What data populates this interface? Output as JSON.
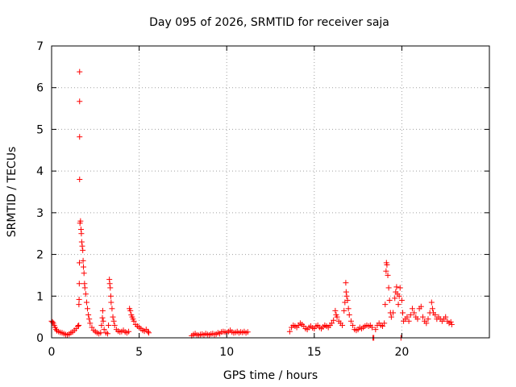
{
  "chart_data": {
    "type": "scatter",
    "title": "Day 095 of 2026, SRMTID for receiver saja",
    "xlabel": "GPS time / hours",
    "ylabel": "SRMTID / TECUs",
    "xlim": [
      0,
      25
    ],
    "ylim": [
      0,
      7
    ],
    "x_ticks": [
      0,
      5,
      10,
      15,
      20
    ],
    "y_ticks": [
      0,
      1,
      2,
      3,
      4,
      5,
      6,
      7
    ],
    "grid": true,
    "marker": "+",
    "series": [
      {
        "name": "SRMTID",
        "color": "#ff0000",
        "points": [
          [
            0.0,
            0.4
          ],
          [
            0.05,
            0.38
          ],
          [
            0.1,
            0.35
          ],
          [
            0.15,
            0.3
          ],
          [
            0.2,
            0.25
          ],
          [
            0.25,
            0.2
          ],
          [
            0.3,
            0.17
          ],
          [
            0.4,
            0.15
          ],
          [
            0.5,
            0.13
          ],
          [
            0.6,
            0.12
          ],
          [
            0.7,
            0.1
          ],
          [
            0.8,
            0.08
          ],
          [
            0.9,
            0.07
          ],
          [
            1.0,
            0.09
          ],
          [
            1.1,
            0.12
          ],
          [
            1.2,
            0.14
          ],
          [
            1.3,
            0.18
          ],
          [
            1.4,
            0.22
          ],
          [
            1.5,
            0.28
          ],
          [
            1.55,
            0.3
          ],
          [
            1.56,
            0.8
          ],
          [
            1.57,
            0.92
          ],
          [
            1.58,
            1.3
          ],
          [
            1.59,
            1.8
          ],
          [
            1.6,
            3.8
          ],
          [
            1.6,
            4.82
          ],
          [
            1.6,
            5.67
          ],
          [
            1.6,
            6.38
          ],
          [
            1.62,
            2.75
          ],
          [
            1.65,
            2.8
          ],
          [
            1.68,
            2.6
          ],
          [
            1.7,
            2.5
          ],
          [
            1.72,
            2.3
          ],
          [
            1.75,
            2.2
          ],
          [
            1.78,
            2.1
          ],
          [
            1.8,
            1.85
          ],
          [
            1.82,
            1.7
          ],
          [
            1.85,
            1.55
          ],
          [
            1.88,
            1.3
          ],
          [
            1.9,
            1.2
          ],
          [
            1.95,
            1.05
          ],
          [
            2.0,
            0.85
          ],
          [
            2.05,
            0.7
          ],
          [
            2.1,
            0.55
          ],
          [
            2.15,
            0.45
          ],
          [
            2.2,
            0.35
          ],
          [
            2.3,
            0.25
          ],
          [
            2.4,
            0.18
          ],
          [
            2.5,
            0.15
          ],
          [
            2.6,
            0.12
          ],
          [
            2.7,
            0.1
          ],
          [
            2.8,
            0.12
          ],
          [
            2.85,
            0.3
          ],
          [
            2.9,
            0.48
          ],
          [
            2.92,
            0.65
          ],
          [
            2.95,
            0.4
          ],
          [
            3.0,
            0.2
          ],
          [
            3.1,
            0.12
          ],
          [
            3.2,
            0.1
          ],
          [
            3.25,
            0.3
          ],
          [
            3.3,
            1.4
          ],
          [
            3.32,
            1.3
          ],
          [
            3.35,
            1.2
          ],
          [
            3.38,
            1.0
          ],
          [
            3.4,
            0.85
          ],
          [
            3.45,
            0.7
          ],
          [
            3.5,
            0.5
          ],
          [
            3.55,
            0.4
          ],
          [
            3.6,
            0.3
          ],
          [
            3.7,
            0.2
          ],
          [
            3.8,
            0.16
          ],
          [
            3.9,
            0.14
          ],
          [
            4.0,
            0.15
          ],
          [
            4.1,
            0.18
          ],
          [
            4.2,
            0.14
          ],
          [
            4.3,
            0.12
          ],
          [
            4.4,
            0.15
          ],
          [
            4.45,
            0.7
          ],
          [
            4.5,
            0.65
          ],
          [
            4.55,
            0.55
          ],
          [
            4.6,
            0.5
          ],
          [
            4.65,
            0.45
          ],
          [
            4.7,
            0.4
          ],
          [
            4.8,
            0.32
          ],
          [
            4.9,
            0.28
          ],
          [
            5.0,
            0.25
          ],
          [
            5.1,
            0.22
          ],
          [
            5.2,
            0.18
          ],
          [
            5.3,
            0.16
          ],
          [
            5.4,
            0.2
          ],
          [
            5.5,
            0.15
          ],
          [
            5.55,
            0.12
          ],
          [
            8.0,
            0.05
          ],
          [
            8.1,
            0.08
          ],
          [
            8.2,
            0.1
          ],
          [
            8.3,
            0.07
          ],
          [
            8.4,
            0.06
          ],
          [
            8.5,
            0.08
          ],
          [
            8.6,
            0.09
          ],
          [
            8.7,
            0.07
          ],
          [
            8.8,
            0.1
          ],
          [
            8.9,
            0.08
          ],
          [
            9.0,
            0.07
          ],
          [
            9.1,
            0.09
          ],
          [
            9.2,
            0.1
          ],
          [
            9.3,
            0.08
          ],
          [
            9.4,
            0.09
          ],
          [
            9.5,
            0.12
          ],
          [
            9.6,
            0.1
          ],
          [
            9.7,
            0.14
          ],
          [
            9.8,
            0.15
          ],
          [
            9.9,
            0.14
          ],
          [
            10.0,
            0.12
          ],
          [
            10.1,
            0.15
          ],
          [
            10.2,
            0.18
          ],
          [
            10.3,
            0.14
          ],
          [
            10.4,
            0.12
          ],
          [
            10.5,
            0.13
          ],
          [
            10.6,
            0.15
          ],
          [
            10.7,
            0.12
          ],
          [
            10.8,
            0.14
          ],
          [
            10.9,
            0.13
          ],
          [
            11.0,
            0.15
          ],
          [
            11.1,
            0.12
          ],
          [
            11.2,
            0.14
          ],
          [
            13.6,
            0.15
          ],
          [
            13.7,
            0.25
          ],
          [
            13.8,
            0.3
          ],
          [
            13.9,
            0.28
          ],
          [
            14.0,
            0.25
          ],
          [
            14.1,
            0.3
          ],
          [
            14.2,
            0.35
          ],
          [
            14.3,
            0.32
          ],
          [
            14.4,
            0.28
          ],
          [
            14.5,
            0.22
          ],
          [
            14.6,
            0.2
          ],
          [
            14.7,
            0.25
          ],
          [
            14.8,
            0.28
          ],
          [
            14.9,
            0.24
          ],
          [
            15.0,
            0.22
          ],
          [
            15.1,
            0.28
          ],
          [
            15.2,
            0.3
          ],
          [
            15.3,
            0.25
          ],
          [
            15.4,
            0.22
          ],
          [
            15.5,
            0.26
          ],
          [
            15.6,
            0.3
          ],
          [
            15.7,
            0.28
          ],
          [
            15.8,
            0.25
          ],
          [
            15.9,
            0.3
          ],
          [
            16.0,
            0.35
          ],
          [
            16.1,
            0.42
          ],
          [
            16.2,
            0.65
          ],
          [
            16.25,
            0.55
          ],
          [
            16.3,
            0.5
          ],
          [
            16.4,
            0.4
          ],
          [
            16.5,
            0.35
          ],
          [
            16.6,
            0.3
          ],
          [
            16.7,
            0.65
          ],
          [
            16.75,
            0.85
          ],
          [
            16.8,
            1.32
          ],
          [
            16.82,
            1.1
          ],
          [
            16.85,
            1.0
          ],
          [
            16.9,
            0.9
          ],
          [
            16.95,
            0.7
          ],
          [
            17.0,
            0.55
          ],
          [
            17.1,
            0.4
          ],
          [
            17.2,
            0.3
          ],
          [
            17.3,
            0.2
          ],
          [
            17.4,
            0.18
          ],
          [
            17.5,
            0.2
          ],
          [
            17.6,
            0.25
          ],
          [
            17.7,
            0.22
          ],
          [
            17.8,
            0.25
          ],
          [
            17.9,
            0.28
          ],
          [
            18.0,
            0.3
          ],
          [
            18.1,
            0.28
          ],
          [
            18.2,
            0.3
          ],
          [
            18.3,
            0.25
          ],
          [
            18.35,
            0.0
          ],
          [
            18.4,
            0.0
          ],
          [
            18.5,
            0.2
          ],
          [
            18.6,
            0.3
          ],
          [
            18.7,
            0.35
          ],
          [
            18.8,
            0.3
          ],
          [
            18.9,
            0.28
          ],
          [
            19.0,
            0.35
          ],
          [
            19.05,
            0.8
          ],
          [
            19.1,
            1.6
          ],
          [
            19.12,
            1.8
          ],
          [
            19.15,
            1.75
          ],
          [
            19.2,
            1.5
          ],
          [
            19.25,
            1.2
          ],
          [
            19.3,
            0.9
          ],
          [
            19.35,
            0.6
          ],
          [
            19.4,
            0.5
          ],
          [
            19.5,
            0.6
          ],
          [
            19.6,
            0.95
          ],
          [
            19.65,
            1.1
          ],
          [
            19.7,
            1.22
          ],
          [
            19.75,
            1.05
          ],
          [
            19.8,
            0.8
          ],
          [
            19.85,
            1.0
          ],
          [
            19.9,
            1.2
          ],
          [
            19.95,
            0.0
          ],
          [
            20.0,
            0.9
          ],
          [
            20.05,
            0.6
          ],
          [
            20.1,
            0.4
          ],
          [
            20.2,
            0.45
          ],
          [
            20.3,
            0.5
          ],
          [
            20.4,
            0.4
          ],
          [
            20.5,
            0.55
          ],
          [
            20.6,
            0.7
          ],
          [
            20.7,
            0.6
          ],
          [
            20.8,
            0.5
          ],
          [
            20.9,
            0.45
          ],
          [
            21.0,
            0.7
          ],
          [
            21.1,
            0.75
          ],
          [
            21.2,
            0.5
          ],
          [
            21.3,
            0.4
          ],
          [
            21.4,
            0.35
          ],
          [
            21.5,
            0.45
          ],
          [
            21.6,
            0.6
          ],
          [
            21.7,
            0.85
          ],
          [
            21.75,
            0.7
          ],
          [
            21.8,
            0.6
          ],
          [
            21.9,
            0.55
          ],
          [
            22.0,
            0.45
          ],
          [
            22.1,
            0.5
          ],
          [
            22.2,
            0.45
          ],
          [
            22.3,
            0.4
          ],
          [
            22.4,
            0.45
          ],
          [
            22.5,
            0.5
          ],
          [
            22.6,
            0.4
          ],
          [
            22.7,
            0.35
          ],
          [
            22.8,
            0.38
          ],
          [
            22.85,
            0.32
          ]
        ]
      }
    ]
  }
}
